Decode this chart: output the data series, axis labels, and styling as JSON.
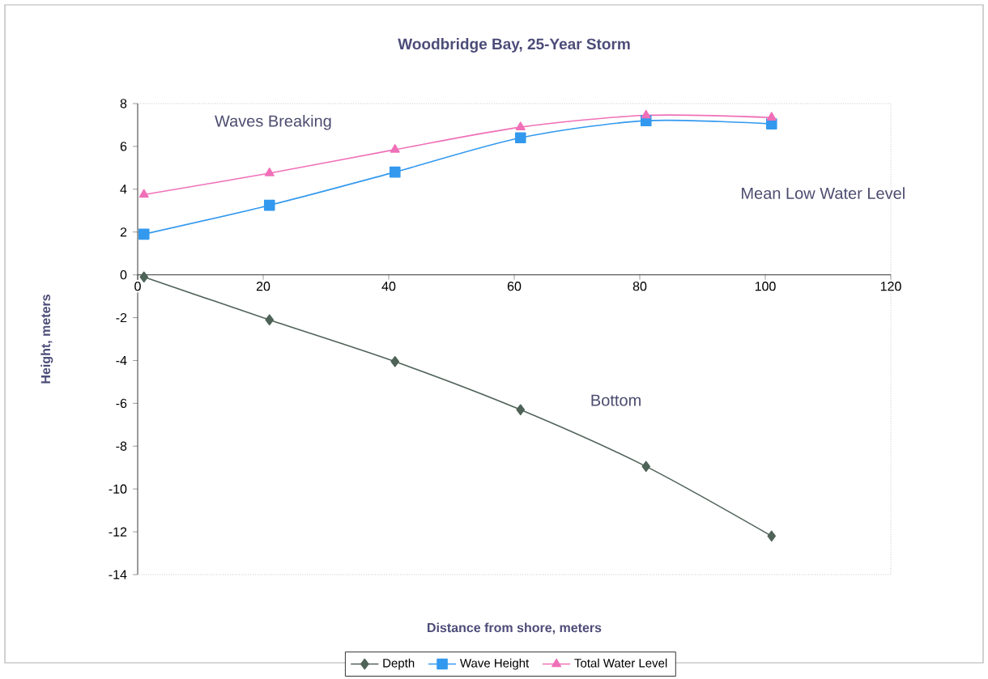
{
  "chart_data": {
    "type": "line",
    "title": "Woodbridge Bay, 25-Year Storm",
    "xlabel": "Distance from shore, meters",
    "ylabel": "Height, meters",
    "x": [
      1,
      21,
      41,
      61,
      81,
      101
    ],
    "series": [
      {
        "name": "Depth",
        "color": "#4f6358",
        "marker": "diamond",
        "values": [
          -0.1,
          -2.1,
          -4.05,
          -6.3,
          -8.95,
          -12.2
        ]
      },
      {
        "name": "Wave Height",
        "color": "#3399ee",
        "marker": "square",
        "values": [
          1.9,
          3.25,
          4.8,
          6.4,
          7.2,
          7.05
        ]
      },
      {
        "name": "Total Water Level",
        "color": "#f070b8",
        "marker": "triangle",
        "values": [
          3.75,
          4.75,
          5.85,
          6.9,
          7.45,
          7.35
        ]
      }
    ],
    "xlim": [
      0,
      120
    ],
    "xticks": [
      0,
      20,
      40,
      60,
      80,
      100,
      120
    ],
    "ylim": [
      -14,
      8
    ],
    "yticks": [
      -14,
      -12,
      -10,
      -8,
      -6,
      -4,
      -2,
      0,
      2,
      4,
      6,
      8
    ],
    "grid": false,
    "legend": "bottom",
    "line_style": "solid",
    "annotations": [
      "Waves Breaking",
      "Mean Low Water Level",
      "Bottom"
    ]
  }
}
